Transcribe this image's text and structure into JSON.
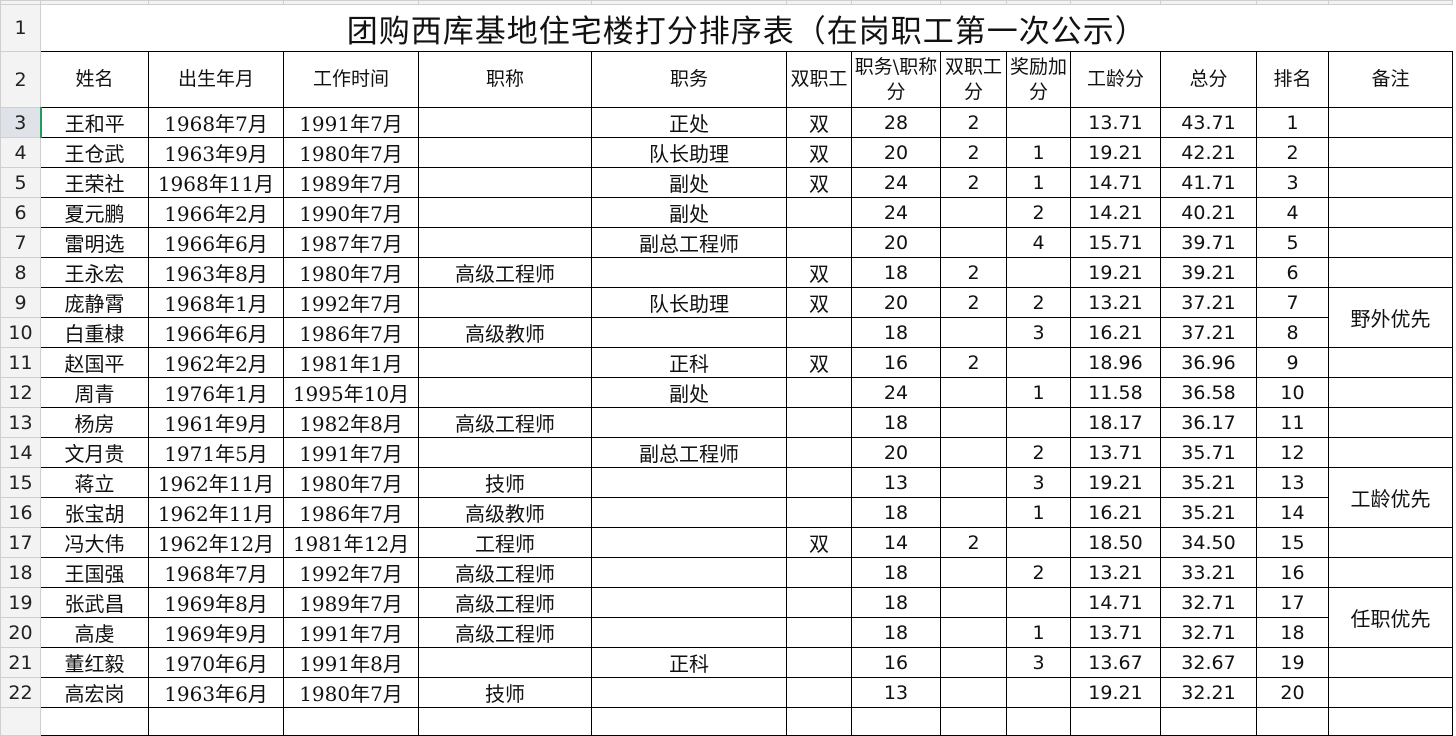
{
  "sheet": {
    "title": "团购西库基地住宅楼打分排序表（在岗职工第一次公示）",
    "headers": [
      "姓名",
      "出生年月",
      "工作时间",
      "职称",
      "职务",
      "双职工",
      "职务\\职称分",
      "双职工分",
      "奖励加分",
      "工龄分",
      "总分",
      "排名",
      "备注"
    ],
    "selected_row": 3,
    "rows": [
      {
        "n": 3,
        "cells": [
          "王和平",
          "1968年7月",
          "1991年7月",
          "",
          "正处",
          "双",
          "28",
          "2",
          "",
          "13.71",
          "43.71",
          "1"
        ]
      },
      {
        "n": 4,
        "cells": [
          "王仓武",
          "1963年9月",
          "1980年7月",
          "",
          "队长助理",
          "双",
          "20",
          "2",
          "1",
          "19.21",
          "42.21",
          "2"
        ]
      },
      {
        "n": 5,
        "cells": [
          "王荣社",
          "1968年11月",
          "1989年7月",
          "",
          "副处",
          "双",
          "24",
          "2",
          "1",
          "14.71",
          "41.71",
          "3"
        ]
      },
      {
        "n": 6,
        "cells": [
          "夏元鹏",
          "1966年2月",
          "1990年7月",
          "",
          "副处",
          "",
          "24",
          "",
          "2",
          "14.21",
          "40.21",
          "4"
        ]
      },
      {
        "n": 7,
        "cells": [
          "雷明选",
          "1966年6月",
          "1987年7月",
          "",
          "副总工程师",
          "",
          "20",
          "",
          "4",
          "15.71",
          "39.71",
          "5"
        ]
      },
      {
        "n": 8,
        "cells": [
          "王永宏",
          "1963年8月",
          "1980年7月",
          "高级工程师",
          "",
          "双",
          "18",
          "2",
          "",
          "19.21",
          "39.21",
          "6"
        ]
      },
      {
        "n": 9,
        "cells": [
          "庞静霄",
          "1968年1月",
          "1992年7月",
          "",
          "队长助理",
          "双",
          "20",
          "2",
          "2",
          "13.21",
          "37.21",
          "7"
        ]
      },
      {
        "n": 10,
        "cells": [
          "白重棣",
          "1966年6月",
          "1986年7月",
          "高级教师",
          "",
          "",
          "18",
          "",
          "3",
          "16.21",
          "37.21",
          "8"
        ]
      },
      {
        "n": 11,
        "cells": [
          "赵国平",
          "1962年2月",
          "1981年1月",
          "",
          "正科",
          "双",
          "16",
          "2",
          "",
          "18.96",
          "36.96",
          "9"
        ]
      },
      {
        "n": 12,
        "cells": [
          "周青",
          "1976年1月",
          "1995年10月",
          "",
          "副处",
          "",
          "24",
          "",
          "1",
          "11.58",
          "36.58",
          "10"
        ]
      },
      {
        "n": 13,
        "cells": [
          "杨房",
          "1961年9月",
          "1982年8月",
          "高级工程师",
          "",
          "",
          "18",
          "",
          "",
          "18.17",
          "36.17",
          "11"
        ]
      },
      {
        "n": 14,
        "cells": [
          "文月贵",
          "1971年5月",
          "1991年7月",
          "",
          "副总工程师",
          "",
          "20",
          "",
          "2",
          "13.71",
          "35.71",
          "12"
        ]
      },
      {
        "n": 15,
        "cells": [
          "蒋立",
          "1962年11月",
          "1980年7月",
          "技师",
          "",
          "",
          "13",
          "",
          "3",
          "19.21",
          "35.21",
          "13"
        ]
      },
      {
        "n": 16,
        "cells": [
          "张宝胡",
          "1962年11月",
          "1986年7月",
          "高级教师",
          "",
          "",
          "18",
          "",
          "1",
          "16.21",
          "35.21",
          "14"
        ]
      },
      {
        "n": 17,
        "cells": [
          "冯大伟",
          "1962年12月",
          "1981年12月",
          "工程师",
          "",
          "双",
          "14",
          "2",
          "",
          "18.50",
          "34.50",
          "15"
        ]
      },
      {
        "n": 18,
        "cells": [
          "王国强",
          "1968年7月",
          "1992年7月",
          "高级工程师",
          "",
          "",
          "18",
          "",
          "2",
          "13.21",
          "33.21",
          "16"
        ]
      },
      {
        "n": 19,
        "cells": [
          "张武昌",
          "1969年8月",
          "1989年7月",
          "高级工程师",
          "",
          "",
          "18",
          "",
          "",
          "14.71",
          "32.71",
          "17"
        ]
      },
      {
        "n": 20,
        "cells": [
          "高虔",
          "1969年9月",
          "1991年7月",
          "高级工程师",
          "",
          "",
          "18",
          "",
          "1",
          "13.71",
          "32.71",
          "18"
        ]
      },
      {
        "n": 21,
        "cells": [
          "董红毅",
          "1970年6月",
          "1991年8月",
          "",
          "正科",
          "",
          "16",
          "",
          "3",
          "13.67",
          "32.67",
          "19"
        ]
      },
      {
        "n": 22,
        "cells": [
          "高宏岗",
          "1963年6月",
          "1980年7月",
          "技师",
          "",
          "",
          "13",
          "",
          "",
          "19.21",
          "32.21",
          "20"
        ]
      }
    ],
    "remarks": [
      {
        "row": 9,
        "span": 2,
        "text": "野外优先"
      },
      {
        "row": 15,
        "span": 2,
        "text": "工龄优先"
      },
      {
        "row": 19,
        "span": 2,
        "text": "任职优先"
      }
    ]
  }
}
